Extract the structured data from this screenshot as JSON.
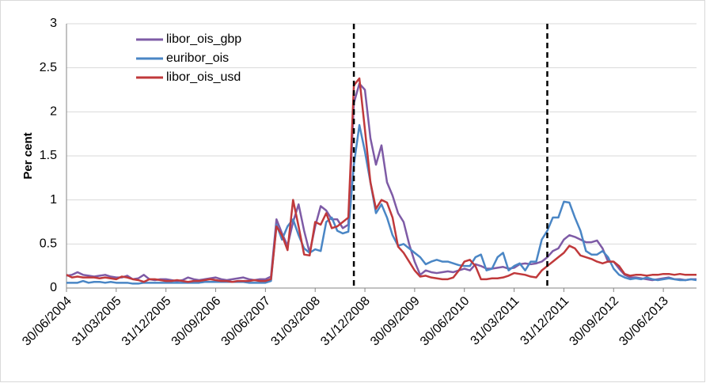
{
  "chart_data": {
    "type": "line",
    "y_label": "Per cent",
    "categories": [
      "30/06/2004",
      null,
      null,
      null,
      null,
      null,
      null,
      null,
      null,
      "31/03/2005",
      null,
      null,
      null,
      null,
      null,
      null,
      null,
      null,
      "31/12/2005",
      null,
      null,
      null,
      null,
      null,
      null,
      null,
      null,
      "30/09/2006",
      null,
      null,
      null,
      null,
      null,
      null,
      null,
      null,
      "30/06/2007",
      null,
      null,
      null,
      null,
      null,
      null,
      null,
      null,
      "31/03/2008",
      null,
      null,
      null,
      null,
      null,
      null,
      null,
      null,
      "31/12/2008",
      null,
      null,
      null,
      null,
      null,
      null,
      null,
      null,
      "30/09/2009",
      null,
      null,
      null,
      null,
      null,
      null,
      null,
      null,
      "30/06/2010",
      null,
      null,
      null,
      null,
      null,
      null,
      null,
      null,
      "31/03/2011",
      null,
      null,
      null,
      null,
      null,
      null,
      null,
      null,
      "31/12/2011",
      null,
      null,
      null,
      null,
      null,
      null,
      null,
      null,
      "30/09/2012",
      null,
      null,
      null,
      null,
      null,
      null,
      null,
      null,
      "30/06/2013",
      null,
      null,
      null,
      null,
      null,
      null
    ],
    "series": [
      {
        "name": "libor_ois_gbp",
        "color": "#7e5ba6",
        "values": [
          0.14,
          0.15,
          0.18,
          0.15,
          0.14,
          0.13,
          0.14,
          0.15,
          0.13,
          0.12,
          0.12,
          0.14,
          0.1,
          0.11,
          0.15,
          0.1,
          0.09,
          0.1,
          0.1,
          0.09,
          0.08,
          0.09,
          0.12,
          0.1,
          0.09,
          0.1,
          0.11,
          0.12,
          0.1,
          0.09,
          0.1,
          0.11,
          0.12,
          0.1,
          0.09,
          0.1,
          0.1,
          0.13,
          0.78,
          0.62,
          0.48,
          0.75,
          0.95,
          0.65,
          0.4,
          0.7,
          0.93,
          0.88,
          0.78,
          0.78,
          0.68,
          0.72,
          2.1,
          2.32,
          2.25,
          1.7,
          1.4,
          1.62,
          1.2,
          1.05,
          0.85,
          0.75,
          0.5,
          0.3,
          0.15,
          0.2,
          0.18,
          0.17,
          0.18,
          0.19,
          0.18,
          0.2,
          0.22,
          0.2,
          0.27,
          0.25,
          0.22,
          0.22,
          0.23,
          0.24,
          0.22,
          0.23,
          0.27,
          0.28,
          0.27,
          0.28,
          0.3,
          0.35,
          0.42,
          0.45,
          0.55,
          0.6,
          0.58,
          0.55,
          0.52,
          0.52,
          0.54,
          0.45,
          0.3,
          0.3,
          0.22,
          0.15,
          0.12,
          0.12,
          0.11,
          0.1,
          0.09,
          0.1,
          0.11,
          0.12,
          0.1,
          0.1,
          0.09,
          0.1,
          0.1
        ]
      },
      {
        "name": "euribor_ois",
        "color": "#4a86c5",
        "values": [
          0.06,
          0.06,
          0.06,
          0.08,
          0.06,
          0.07,
          0.07,
          0.06,
          0.07,
          0.06,
          0.06,
          0.06,
          0.05,
          0.05,
          0.06,
          0.06,
          0.06,
          0.06,
          0.06,
          0.06,
          0.06,
          0.06,
          0.06,
          0.06,
          0.06,
          0.07,
          0.07,
          0.07,
          0.07,
          0.07,
          0.07,
          0.07,
          0.07,
          0.06,
          0.06,
          0.06,
          0.06,
          0.08,
          0.72,
          0.55,
          0.7,
          0.78,
          0.6,
          0.45,
          0.4,
          0.44,
          0.42,
          0.75,
          0.8,
          0.65,
          0.62,
          0.64,
          1.4,
          1.85,
          1.55,
          1.2,
          0.85,
          0.95,
          0.8,
          0.6,
          0.48,
          0.5,
          0.45,
          0.4,
          0.35,
          0.27,
          0.3,
          0.32,
          0.3,
          0.3,
          0.28,
          0.26,
          0.25,
          0.25,
          0.35,
          0.38,
          0.2,
          0.22,
          0.35,
          0.4,
          0.2,
          0.25,
          0.28,
          0.2,
          0.3,
          0.3,
          0.55,
          0.65,
          0.8,
          0.8,
          0.98,
          0.97,
          0.8,
          0.65,
          0.42,
          0.38,
          0.38,
          0.42,
          0.35,
          0.22,
          0.15,
          0.12,
          0.1,
          0.11,
          0.1,
          0.12,
          0.1,
          0.09,
          0.1,
          0.11,
          0.1,
          0.09,
          0.09,
          0.1,
          0.09
        ]
      },
      {
        "name": "libor_ois_usd",
        "color": "#c0393b",
        "values": [
          0.15,
          0.12,
          0.13,
          0.12,
          0.12,
          0.12,
          0.11,
          0.12,
          0.11,
          0.1,
          0.13,
          0.12,
          0.1,
          0.09,
          0.07,
          0.1,
          0.1,
          0.09,
          0.08,
          0.08,
          0.09,
          0.08,
          0.07,
          0.08,
          0.08,
          0.09,
          0.1,
          0.09,
          0.08,
          0.08,
          0.07,
          0.08,
          0.08,
          0.08,
          0.09,
          0.08,
          0.08,
          0.1,
          0.7,
          0.6,
          0.43,
          1.0,
          0.7,
          0.38,
          0.37,
          0.75,
          0.72,
          0.85,
          0.68,
          0.7,
          0.75,
          0.8,
          2.3,
          2.38,
          1.8,
          1.2,
          0.9,
          1.0,
          0.97,
          0.8,
          0.47,
          0.4,
          0.3,
          0.2,
          0.13,
          0.14,
          0.12,
          0.11,
          0.1,
          0.1,
          0.12,
          0.2,
          0.3,
          0.32,
          0.25,
          0.1,
          0.1,
          0.11,
          0.11,
          0.12,
          0.14,
          0.17,
          0.16,
          0.15,
          0.13,
          0.12,
          0.2,
          0.25,
          0.3,
          0.35,
          0.4,
          0.48,
          0.45,
          0.37,
          0.35,
          0.33,
          0.3,
          0.28,
          0.3,
          0.3,
          0.25,
          0.16,
          0.14,
          0.15,
          0.15,
          0.14,
          0.15,
          0.15,
          0.16,
          0.16,
          0.15,
          0.16,
          0.15,
          0.15,
          0.15
        ]
      }
    ],
    "vlines": [
      52,
      87
    ],
    "ylim": [
      0,
      3
    ],
    "yticks": [
      0,
      0.5,
      1,
      1.5,
      2,
      2.5,
      3
    ],
    "grid": true
  }
}
